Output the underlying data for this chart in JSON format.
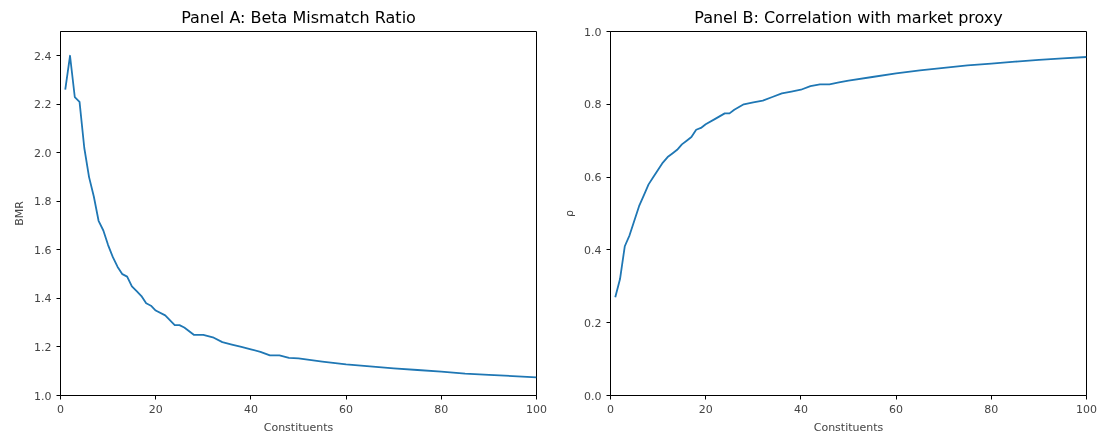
{
  "chart_data": [
    {
      "type": "line",
      "title": "Panel A: Beta Mismatch Ratio",
      "xlabel": "Constituents",
      "ylabel": "BMR",
      "x": [
        1,
        2,
        3,
        4,
        5,
        6,
        7,
        8,
        9,
        10,
        11,
        12,
        13,
        14,
        15,
        16,
        17,
        18,
        19,
        20,
        22,
        24,
        25,
        26,
        28,
        30,
        32,
        34,
        36,
        38,
        40,
        42,
        44,
        46,
        48,
        50,
        55,
        60,
        65,
        70,
        75,
        80,
        85,
        90,
        95,
        100
      ],
      "series": [
        {
          "color": "#1f77b4",
          "values": [
            2.26,
            2.4,
            2.23,
            2.21,
            2.02,
            1.9,
            1.82,
            1.72,
            1.68,
            1.62,
            1.57,
            1.53,
            1.5,
            1.49,
            1.45,
            1.43,
            1.41,
            1.38,
            1.37,
            1.35,
            1.33,
            1.29,
            1.29,
            1.28,
            1.25,
            1.25,
            1.24,
            1.22,
            1.21,
            1.2,
            1.19,
            1.18,
            1.165,
            1.165,
            1.155,
            1.153,
            1.14,
            1.128,
            1.12,
            1.112,
            1.105,
            1.098,
            1.09,
            1.085,
            1.08,
            1.075
          ]
        }
      ],
      "xlim": [
        0,
        100
      ],
      "xticks": [
        0,
        20,
        40,
        60,
        80,
        100
      ],
      "ylim": [
        1.0,
        2.5
      ],
      "yticks": [
        {
          "value": 1.0,
          "label": "1.0"
        },
        {
          "value": 1.2,
          "label": "1.2"
        },
        {
          "value": 1.4,
          "label": "1.4"
        },
        {
          "value": 1.6,
          "label": "1.6"
        },
        {
          "value": 1.8,
          "label": "1.8"
        },
        {
          "value": 2.0,
          "label": "2.0"
        },
        {
          "value": 2.2,
          "label": "2.2"
        },
        {
          "value": 2.4,
          "label": "2.4"
        }
      ],
      "grid": false
    },
    {
      "type": "line",
      "title": "Panel B: Correlation with market proxy",
      "xlabel": "Constituents",
      "ylabel": "ρ",
      "x": [
        1,
        2,
        3,
        4,
        5,
        6,
        7,
        8,
        9,
        10,
        11,
        12,
        13,
        14,
        15,
        16,
        17,
        18,
        19,
        20,
        22,
        24,
        25,
        26,
        28,
        30,
        32,
        34,
        36,
        38,
        40,
        42,
        44,
        46,
        48,
        50,
        55,
        60,
        65,
        70,
        75,
        80,
        85,
        90,
        95,
        100
      ],
      "series": [
        {
          "color": "#1f77b4",
          "values": [
            0.27,
            0.32,
            0.41,
            0.44,
            0.48,
            0.52,
            0.55,
            0.58,
            0.6,
            0.62,
            0.64,
            0.655,
            0.665,
            0.675,
            0.69,
            0.7,
            0.71,
            0.73,
            0.735,
            0.745,
            0.76,
            0.775,
            0.775,
            0.785,
            0.8,
            0.805,
            0.81,
            0.82,
            0.83,
            0.835,
            0.84,
            0.85,
            0.855,
            0.855,
            0.86,
            0.865,
            0.875,
            0.885,
            0.893,
            0.9,
            0.907,
            0.912,
            0.917,
            0.922,
            0.926,
            0.93
          ]
        }
      ],
      "xlim": [
        0,
        100
      ],
      "xticks": [
        0,
        20,
        40,
        60,
        80,
        100
      ],
      "ylim": [
        0.0,
        1.0
      ],
      "yticks": [
        {
          "value": 0.0,
          "label": "0.0"
        },
        {
          "value": 0.2,
          "label": "0.2"
        },
        {
          "value": 0.4,
          "label": "0.4"
        },
        {
          "value": 0.6,
          "label": "0.6"
        },
        {
          "value": 0.8,
          "label": "0.8"
        },
        {
          "value": 1.0,
          "label": "1.0"
        }
      ],
      "grid": false
    }
  ]
}
